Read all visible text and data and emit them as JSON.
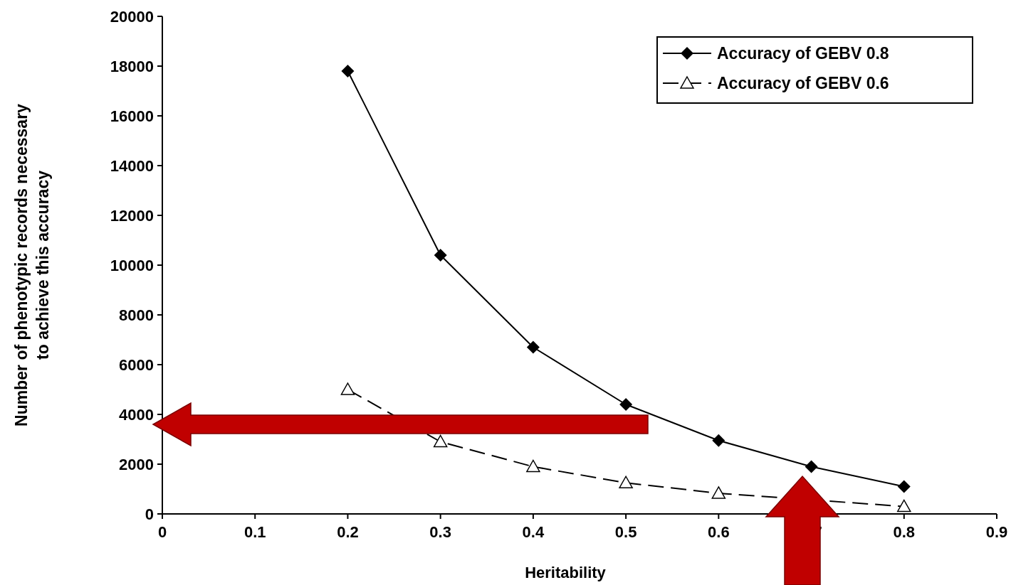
{
  "chart_data": {
    "type": "line",
    "xlabel": "Heritability",
    "ylabel": "Number of phenotypic records necessary\nto achieve this accuracy",
    "x": [
      0.2,
      0.3,
      0.4,
      0.5,
      0.6,
      0.7,
      0.8
    ],
    "series": [
      {
        "name": "Accuracy of GEBV 0.8",
        "color": "#000000",
        "marker": "diamond",
        "line_style": "solid",
        "values": [
          17800,
          10400,
          6700,
          4400,
          2950,
          1900,
          1100
        ]
      },
      {
        "name": "Accuracy of GEBV 0.6",
        "color": "#000000",
        "marker": "triangle",
        "line_style": "dashed",
        "values": [
          5000,
          2900,
          1900,
          1250,
          830,
          null,
          300
        ]
      }
    ],
    "xlim": [
      0,
      0.9
    ],
    "xticks": [
      0,
      0.1,
      0.2,
      0.3,
      0.4,
      0.5,
      0.6,
      0.7,
      0.8,
      0.9
    ],
    "ylim": [
      0,
      20000
    ],
    "yticks": [
      0,
      2000,
      4000,
      6000,
      8000,
      10000,
      12000,
      14000,
      16000,
      18000,
      20000
    ],
    "legend": "top right"
  }
}
